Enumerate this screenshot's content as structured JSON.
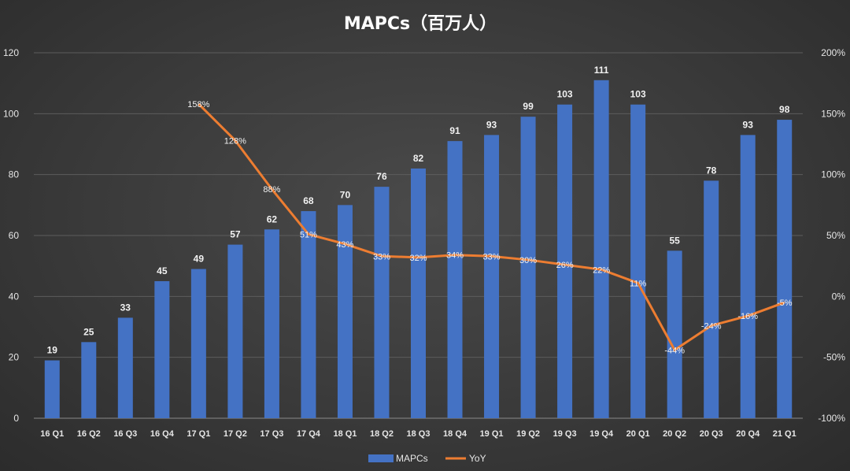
{
  "chart_data": {
    "type": "bar",
    "title": "MAPCs（百万人）",
    "categories": [
      "16 Q1",
      "16 Q2",
      "16 Q3",
      "16 Q4",
      "17 Q1",
      "17 Q2",
      "17 Q3",
      "17 Q4",
      "18 Q1",
      "18 Q2",
      "18 Q3",
      "18 Q4",
      "19 Q1",
      "19 Q2",
      "19 Q3",
      "19 Q4",
      "20 Q1",
      "20 Q2",
      "20 Q3",
      "20 Q4",
      "21 Q1"
    ],
    "series": [
      {
        "name": "MAPCs",
        "type": "bar",
        "axis": "left",
        "color": "#4472C4",
        "values": [
          19,
          25,
          33,
          45,
          49,
          57,
          62,
          68,
          70,
          76,
          82,
          91,
          93,
          99,
          103,
          111,
          103,
          55,
          78,
          93,
          98
        ]
      },
      {
        "name": "YoY",
        "type": "line",
        "axis": "right",
        "color": "#ED7D31",
        "values": [
          null,
          null,
          null,
          null,
          158,
          128,
          88,
          51,
          43,
          33,
          32,
          34,
          33,
          30,
          26,
          22,
          11,
          -44,
          -24,
          -16,
          -5
        ],
        "labels": [
          "",
          "",
          "",
          "",
          "158%",
          "128%",
          "88%",
          "51%",
          "43%",
          "33%",
          "32%",
          "34%",
          "33%",
          "30%",
          "26%",
          "22%",
          "11%",
          "-44%",
          "-24%",
          "-16%",
          "-5%"
        ]
      }
    ],
    "left_axis": {
      "min": 0,
      "max": 120,
      "ticks": [
        "0",
        "20",
        "40",
        "60",
        "80",
        "100",
        "120"
      ]
    },
    "right_axis": {
      "min": -100,
      "max": 200,
      "ticks": [
        "-100%",
        "-50%",
        "0%",
        "50%",
        "100%",
        "150%",
        "200%"
      ]
    },
    "grid": true,
    "legend": {
      "position": "bottom",
      "items": [
        "MAPCs",
        "YoY"
      ]
    }
  }
}
